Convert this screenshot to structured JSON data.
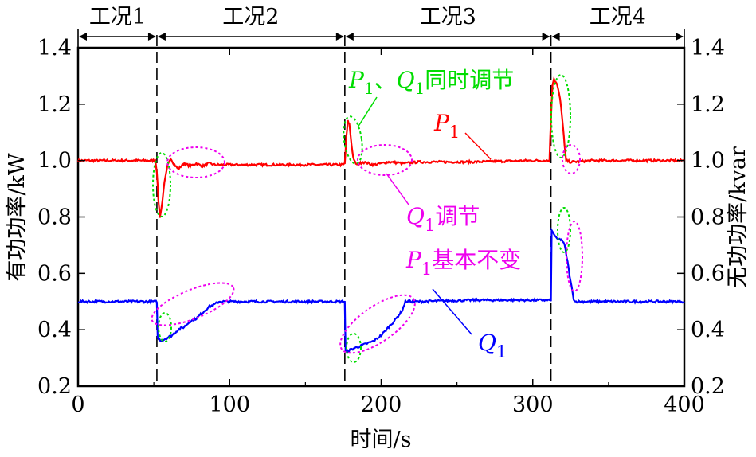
{
  "chart_data": {
    "type": "line",
    "xlabel": "时间/s",
    "ylabel_left": "有功功率/kW",
    "ylabel_right": "无功功率/kvar",
    "xlim": [
      0,
      400
    ],
    "ylim": [
      0.2,
      1.4
    ],
    "x_ticks": [
      "0",
      "100",
      "200",
      "300",
      "400"
    ],
    "y_ticks": [
      "0.2",
      "0.4",
      "0.6",
      "0.8",
      "1.0",
      "1.2",
      "1.4"
    ],
    "grid": false,
    "conditions": [
      {
        "label": "工况1",
        "start": 0,
        "end": 52
      },
      {
        "label": "工况2",
        "start": 52,
        "end": 176
      },
      {
        "label": "工况3",
        "start": 176,
        "end": 312
      },
      {
        "label": "工况4",
        "start": 312,
        "end": 400
      }
    ],
    "event_lines_x": [
      52,
      176,
      312
    ],
    "series": [
      {
        "name": "P1",
        "color": "#ff0000",
        "points": [
          [
            0,
            1.0
          ],
          [
            51,
            1.0
          ],
          [
            52,
            0.96
          ],
          [
            53,
            0.86
          ],
          [
            54,
            0.8
          ],
          [
            55,
            0.83
          ],
          [
            57,
            0.92
          ],
          [
            59,
            0.98
          ],
          [
            61,
            1.01
          ],
          [
            63,
            0.99
          ],
          [
            66,
            0.97
          ],
          [
            70,
            0.99
          ],
          [
            74,
            0.98
          ],
          [
            78,
            0.99
          ],
          [
            82,
            0.98
          ],
          [
            86,
            0.99
          ],
          [
            90,
            0.985
          ],
          [
            100,
            0.985
          ],
          [
            150,
            0.985
          ],
          [
            175,
            0.985
          ],
          [
            176,
            0.99
          ],
          [
            177,
            1.08
          ],
          [
            178,
            1.14
          ],
          [
            179,
            1.13
          ],
          [
            180,
            1.08
          ],
          [
            181,
            1.03
          ],
          [
            182,
            1.0
          ],
          [
            184,
            0.985
          ],
          [
            188,
            0.995
          ],
          [
            195,
            0.985
          ],
          [
            205,
            0.995
          ],
          [
            215,
            0.99
          ],
          [
            225,
            0.995
          ],
          [
            260,
            0.995
          ],
          [
            300,
            1.0
          ],
          [
            311,
            1.0
          ],
          [
            312,
            1.15
          ],
          [
            313,
            1.27
          ],
          [
            314,
            1.29
          ],
          [
            316,
            1.27
          ],
          [
            318,
            1.22
          ],
          [
            320,
            1.12
          ],
          [
            321,
            1.05
          ],
          [
            322,
            1.0
          ],
          [
            325,
            0.995
          ],
          [
            340,
            1.0
          ],
          [
            400,
            1.0
          ]
        ]
      },
      {
        "name": "Q1",
        "color": "#0000ff",
        "points": [
          [
            0,
            0.5
          ],
          [
            52,
            0.5
          ],
          [
            52.5,
            0.37
          ],
          [
            55,
            0.36
          ],
          [
            58,
            0.37
          ],
          [
            62,
            0.38
          ],
          [
            66,
            0.4
          ],
          [
            70,
            0.41
          ],
          [
            74,
            0.43
          ],
          [
            78,
            0.44
          ],
          [
            82,
            0.46
          ],
          [
            86,
            0.48
          ],
          [
            90,
            0.49
          ],
          [
            93,
            0.5
          ],
          [
            100,
            0.5
          ],
          [
            150,
            0.5
          ],
          [
            176,
            0.5
          ],
          [
            176.5,
            0.32
          ],
          [
            180,
            0.33
          ],
          [
            185,
            0.34
          ],
          [
            190,
            0.35
          ],
          [
            195,
            0.36
          ],
          [
            200,
            0.38
          ],
          [
            205,
            0.41
          ],
          [
            210,
            0.44
          ],
          [
            214,
            0.47
          ],
          [
            216,
            0.5
          ],
          [
            225,
            0.5
          ],
          [
            260,
            0.505
          ],
          [
            300,
            0.505
          ],
          [
            312,
            0.505
          ],
          [
            312.5,
            0.75
          ],
          [
            314,
            0.74
          ],
          [
            316,
            0.72
          ],
          [
            319,
            0.72
          ],
          [
            321,
            0.7
          ],
          [
            323,
            0.64
          ],
          [
            325,
            0.57
          ],
          [
            327,
            0.51
          ],
          [
            328,
            0.5
          ],
          [
            350,
            0.5
          ],
          [
            400,
            0.5
          ]
        ]
      }
    ],
    "annotations": {
      "p1_label_main": "P",
      "p1_label_sub": "1",
      "q1_label_main": "Q",
      "q1_label_sub": "1",
      "green_p": "P",
      "green_p_sub": "1",
      "green_sep": "、",
      "green_q": "Q",
      "green_q_sub": "1",
      "green_tail": "同时调节",
      "mag_q": "Q",
      "mag_q_sub": "1",
      "mag_q_tail": "调节",
      "mag_p": "P",
      "mag_p_sub": "1",
      "mag_p_tail": "基本不变"
    },
    "highlight_colors": {
      "simultaneous": "#00dd00",
      "q_only": "#ee00ee"
    }
  }
}
